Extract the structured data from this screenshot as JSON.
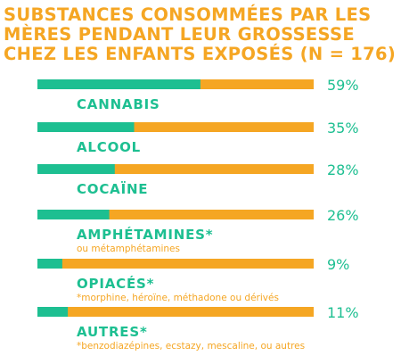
{
  "title_lines": [
    "SUBSTANCES CONSOMMÉES PAR LES",
    "MÈRES PENDANT LEUR GROSSESSE",
    "CHEZ LES ENFANTS EXPOSÉS (N = 176)"
  ],
  "colors": {
    "title": "#F5A623",
    "filled": "#1DBF91",
    "remaining": "#F5A623",
    "label": "#1DBF91"
  },
  "chart_data": {
    "type": "bar",
    "orientation": "horizontal",
    "title": "SUBSTANCES CONSOMMÉES PAR LES MÈRES PENDANT LEUR GROSSESSE CHEZ LES ENFANTS EXPOSÉS (N = 176)",
    "unit": "%",
    "xlim": [
      0,
      100
    ],
    "categories": [
      "CANNABIS",
      "ALCOOL",
      "COCAÏNE",
      "AMPHÉTAMINES*",
      "OPIACÉS*",
      "AUTRES*"
    ],
    "values": [
      59,
      35,
      28,
      26,
      9,
      11
    ],
    "value_labels": [
      "59%",
      "35%",
      "28%",
      "26%",
      "9%",
      "11%"
    ],
    "sublabels": [
      "",
      "",
      "",
      "ou métamphétamines",
      "*morphine, héroïne, méthadone ou dérivés",
      "*benzodiazépines, ecstazy, mescaline, ou autres"
    ]
  }
}
